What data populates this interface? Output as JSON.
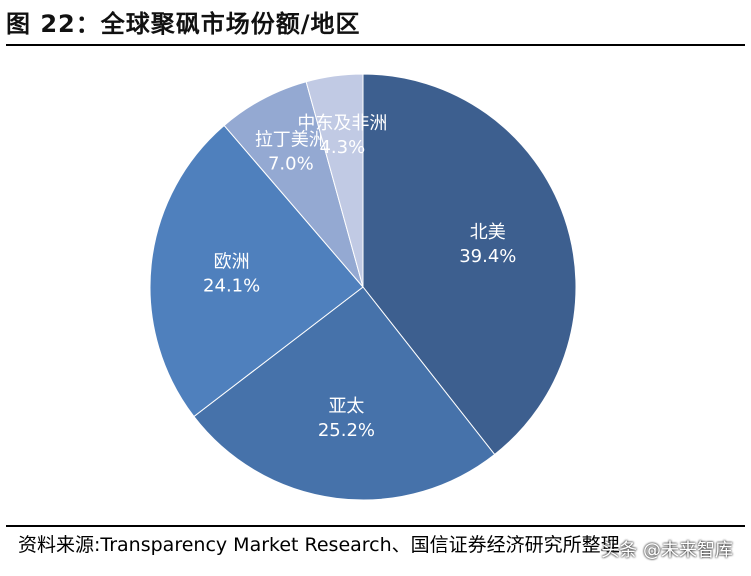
{
  "title": "图 22：全球聚砜市场份额/地区",
  "source": "资料来源:Transparency Market Research、国信证券经济研究所整理",
  "watermark": "头条 @未来智库",
  "chart_data": {
    "type": "pie",
    "slices": [
      {
        "label": "北美",
        "value": 39.4,
        "display": "39.4%",
        "color": "#3d5f8f"
      },
      {
        "label": "亚太",
        "value": 25.2,
        "display": "25.2%",
        "color": "#4672aa"
      },
      {
        "label": "欧洲",
        "value": 24.1,
        "display": "24.1%",
        "color": "#4f80bd"
      },
      {
        "label": "拉丁美洲",
        "value": 7.0,
        "display": "7.0%",
        "color": "#94a9d2"
      },
      {
        "label": "中东及非洲",
        "value": 4.3,
        "display": "4.3%",
        "color": "#c1cae4"
      }
    ],
    "start_angle": "12 o'clock",
    "direction": "clockwise"
  }
}
